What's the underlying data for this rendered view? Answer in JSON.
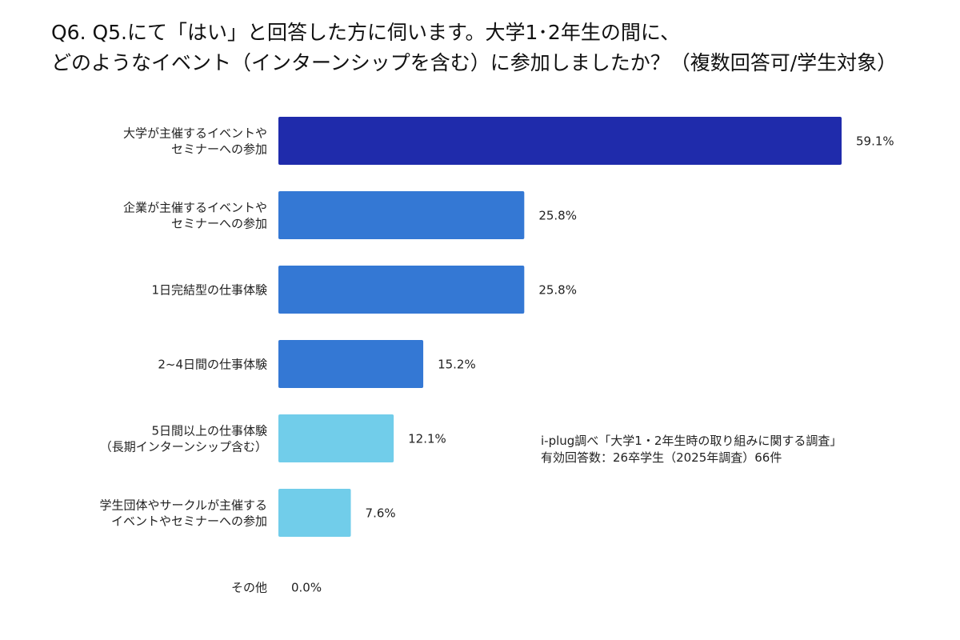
{
  "title_lines": [
    "Q6. Q5.にて「はい」と回答した方に伺います。大学1･2年生の間に、",
    "どのようなイベント（インターンシップを含む）に参加しましたか？（複数回答可/学生対象）"
  ],
  "source": {
    "line1": "i-plug調べ「大学1・2年生時の取り組みに関する調査」",
    "line2": "有効回答数：26卒学生（2025年調査）66件"
  },
  "colors": {
    "dark": "#1f2bab",
    "medium": "#3478d4",
    "light": "#71cdea"
  },
  "chart_data": {
    "type": "bar",
    "orientation": "horizontal",
    "unit": "%",
    "xlim": [
      0,
      59.1
    ],
    "grid": false,
    "legend": "none",
    "categories": [
      [
        "大学が主催するイベントや",
        "セミナーへの参加"
      ],
      [
        "企業が主催するイベントや",
        "セミナーへの参加"
      ],
      [
        "1日完結型の仕事体験"
      ],
      [
        "2~4日間の仕事体験"
      ],
      [
        "5日間以上の仕事体験",
        "（長期インターンシップ含む）"
      ],
      [
        "学生団体やサークルが主催する",
        "イベントやセミナーへの参加"
      ],
      [
        "その他"
      ]
    ],
    "values": [
      59.1,
      25.8,
      25.8,
      15.2,
      12.1,
      7.6,
      0.0
    ],
    "value_labels": [
      "59.1%",
      "25.8%",
      "25.8%",
      "15.2%",
      "12.1%",
      "7.6%",
      "0.0%"
    ],
    "bar_colors": [
      "dark",
      "medium",
      "medium",
      "medium",
      "light",
      "light",
      "light"
    ]
  }
}
